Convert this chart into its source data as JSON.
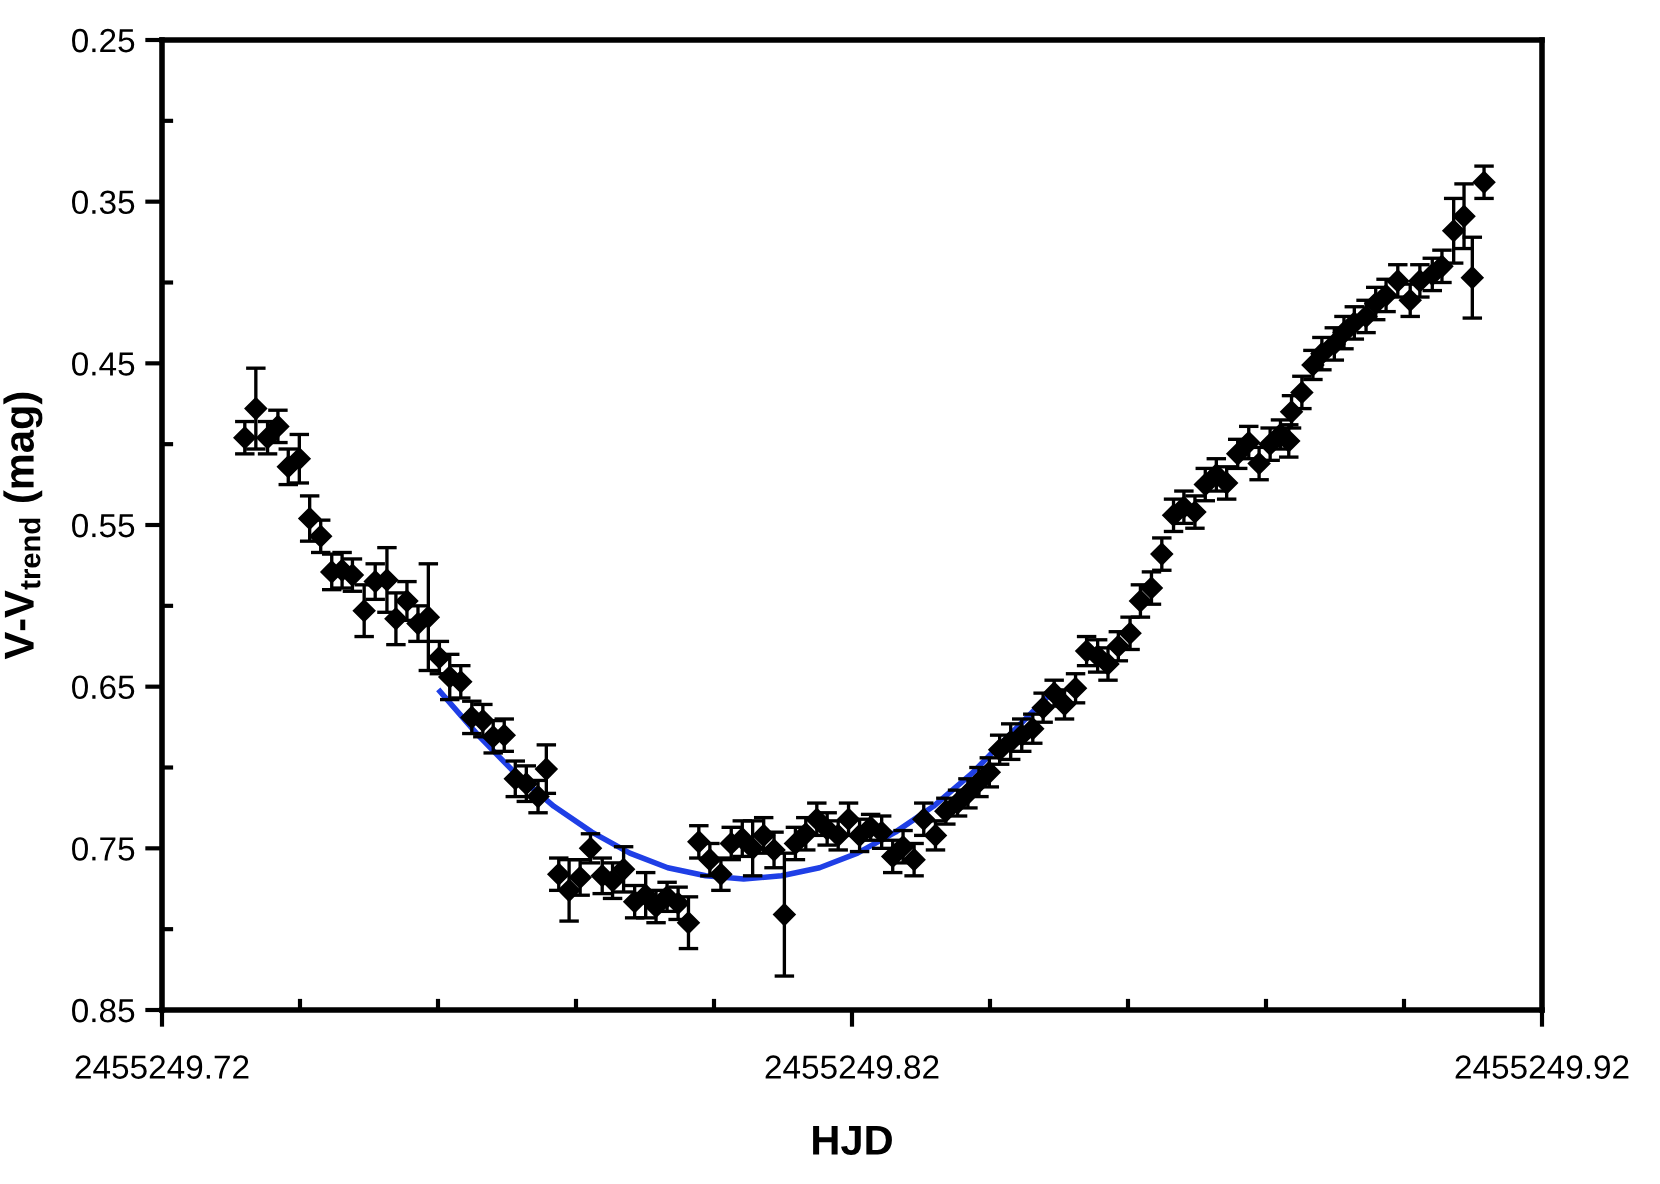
{
  "chart_data": {
    "type": "scatter",
    "xlabel": "HJD",
    "ylabel": "V-V$_{trend}$ (mag)",
    "xlim": [
      2455249.72,
      2455249.92
    ],
    "xticks": [
      2455249.72,
      {
        "value": 2455249.74,
        "label": null
      },
      {
        "value": 2455249.76,
        "label": null
      },
      {
        "value": 2455249.78,
        "label": null
      },
      {
        "value": 2455249.8,
        "label": null
      },
      2455249.82,
      {
        "value": 2455249.84,
        "label": null
      },
      {
        "value": 2455249.86,
        "label": null
      },
      {
        "value": 2455249.88,
        "label": null
      },
      {
        "value": 2455249.9,
        "label": null
      },
      2455249.92
    ],
    "ylim": [
      0.85,
      0.25
    ],
    "yticks": [
      0.25,
      {
        "value": 0.3,
        "label": null
      },
      0.35,
      {
        "value": 0.4,
        "label": null
      },
      0.45,
      {
        "value": 0.5,
        "label": null
      },
      0.55,
      {
        "value": 0.6,
        "label": null
      },
      0.65,
      {
        "value": 0.7,
        "label": null
      },
      0.75,
      {
        "value": 0.8,
        "label": null
      },
      0.85
    ],
    "grid": false,
    "series": [
      {
        "marker": "diamond",
        "color": "#000000",
        "x": [
          2455249.732,
          2455249.7336,
          2455249.7353,
          2455249.7368,
          2455249.7383,
          2455249.7399,
          2455249.7414,
          2455249.743,
          2455249.7446,
          2455249.7461,
          2455249.7476,
          2455249.7493,
          2455249.7509,
          2455249.7526,
          2455249.7539,
          2455249.7555,
          2455249.7571,
          2455249.7586,
          2455249.7602,
          2455249.7617,
          2455249.7633,
          2455249.7649,
          2455249.7665,
          2455249.768,
          2455249.7696,
          2455249.7712,
          2455249.7728,
          2455249.7745,
          2455249.7757,
          2455249.7775,
          2455249.779,
          2455249.7806,
          2455249.7821,
          2455249.7838,
          2455249.7853,
          2455249.7869,
          2455249.7885,
          2455249.7901,
          2455249.7916,
          2455249.7932,
          2455249.7948,
          2455249.7963,
          2455249.7978,
          2455249.7994,
          2455249.801,
          2455249.8025,
          2455249.8041,
          2455249.8056,
          2455249.8072,
          2455249.8087,
          2455249.8102,
          2455249.8118,
          2455249.8133,
          2455249.8149,
          2455249.8164,
          2455249.818,
          2455249.8195,
          2455249.8211,
          2455249.8227,
          2455249.8243,
          2455249.8259,
          2455249.8274,
          2455249.829,
          2455249.8304,
          2455249.8321,
          2455249.8336,
          2455249.8353,
          2455249.8368,
          2455249.8384,
          2455249.8399,
          2455249.8414,
          2455249.843,
          2455249.8446,
          2455249.8462,
          2455249.8477,
          2455249.8493,
          2455249.8508,
          2455249.8524,
          2455249.854,
          2455249.8556,
          2455249.8571,
          2455249.8586,
          2455249.8603,
          2455249.8618,
          2455249.8634,
          2455249.8649,
          2455249.8666,
          2455249.8681,
          2455249.8697,
          2455249.8712,
          2455249.8728,
          2455249.8743,
          2455249.8759,
          2455249.8775,
          2455249.879,
          2455249.8806,
          2455249.8821,
          2455249.8833,
          2455249.8837,
          2455249.8852,
          2455249.8868,
          2455249.8881,
          2455249.8899,
          2455249.8913,
          2455249.8928,
          2455249.8945,
          2455249.8959,
          2455249.8974,
          2455249.8991,
          2455249.9009,
          2455249.9023,
          2455249.9041,
          2455249.9055,
          2455249.9072,
          2455249.9087,
          2455249.9099,
          2455249.9116
        ],
        "values": [
          0.496,
          0.478,
          0.496,
          0.489,
          0.514,
          0.509,
          0.546,
          0.557,
          0.579,
          0.578,
          0.581,
          0.603,
          0.585,
          0.584,
          0.608,
          0.597,
          0.611,
          0.607,
          0.632,
          0.644,
          0.647,
          0.669,
          0.671,
          0.681,
          0.68,
          0.707,
          0.71,
          0.718,
          0.701,
          0.766,
          0.776,
          0.768,
          0.75,
          0.767,
          0.77,
          0.763,
          0.783,
          0.779,
          0.786,
          0.78,
          0.784,
          0.796,
          0.746,
          0.757,
          0.766,
          0.747,
          0.744,
          0.75,
          0.742,
          0.751,
          0.791,
          0.747,
          0.741,
          0.732,
          0.738,
          0.742,
          0.732,
          0.742,
          0.737,
          0.74,
          0.755,
          0.749,
          0.757,
          0.732,
          0.742,
          0.727,
          0.722,
          0.716,
          0.709,
          0.703,
          0.689,
          0.684,
          0.68,
          0.676,
          0.663,
          0.654,
          0.661,
          0.651,
          0.628,
          0.631,
          0.636,
          0.625,
          0.617,
          0.597,
          0.589,
          0.568,
          0.544,
          0.539,
          0.542,
          0.525,
          0.519,
          0.524,
          0.506,
          0.499,
          0.512,
          0.5,
          0.494,
          0.498,
          0.48,
          0.468,
          0.451,
          0.444,
          0.438,
          0.431,
          0.425,
          0.421,
          0.413,
          0.408,
          0.399,
          0.411,
          0.399,
          0.395,
          0.39,
          0.368,
          0.359,
          0.397,
          0.338
        ],
        "errors": [
          0.01,
          0.025,
          0.01,
          0.01,
          0.011,
          0.015,
          0.014,
          0.01,
          0.011,
          0.011,
          0.01,
          0.016,
          0.011,
          0.02,
          0.016,
          0.012,
          0.011,
          0.033,
          0.01,
          0.014,
          0.01,
          0.01,
          0.01,
          0.01,
          0.01,
          0.011,
          0.011,
          0.01,
          0.015,
          0.01,
          0.019,
          0.011,
          0.009,
          0.011,
          0.011,
          0.014,
          0.01,
          0.014,
          0.01,
          0.009,
          0.01,
          0.016,
          0.01,
          0.01,
          0.01,
          0.01,
          0.011,
          0.017,
          0.011,
          0.011,
          0.038,
          0.01,
          0.01,
          0.01,
          0.01,
          0.009,
          0.01,
          0.01,
          0.008,
          0.01,
          0.01,
          0.01,
          0.01,
          0.01,
          0.009,
          0.008,
          0.008,
          0.009,
          0.009,
          0.009,
          0.009,
          0.011,
          0.01,
          0.009,
          0.009,
          0.008,
          0.009,
          0.009,
          0.009,
          0.01,
          0.01,
          0.009,
          0.01,
          0.01,
          0.01,
          0.01,
          0.01,
          0.01,
          0.01,
          0.01,
          0.01,
          0.01,
          0.009,
          0.01,
          0.01,
          0.01,
          0.009,
          0.01,
          0.01,
          0.01,
          0.009,
          0.01,
          0.01,
          0.01,
          0.01,
          0.01,
          0.01,
          0.01,
          0.01,
          0.01,
          0.01,
          0.01,
          0.01,
          0.02,
          0.02,
          0.025,
          0.01
        ]
      },
      {
        "type": "line",
        "color": "#1f3fe6",
        "marker": "none",
        "x": [
          2455249.7603,
          2455249.7658,
          2455249.7713,
          2455249.7768,
          2455249.7823,
          2455249.7878,
          2455249.7933,
          2455249.7988,
          2455249.8043,
          2455249.8098,
          2455249.8153,
          2455249.8208,
          2455249.8263,
          2455249.8318,
          2455249.8373,
          2455249.8428,
          2455249.8484
        ],
        "values": [
          0.653,
          0.68,
          0.704,
          0.724,
          0.74,
          0.753,
          0.762,
          0.767,
          0.769,
          0.767,
          0.762,
          0.753,
          0.74,
          0.724,
          0.704,
          0.68,
          0.656
        ]
      }
    ]
  }
}
